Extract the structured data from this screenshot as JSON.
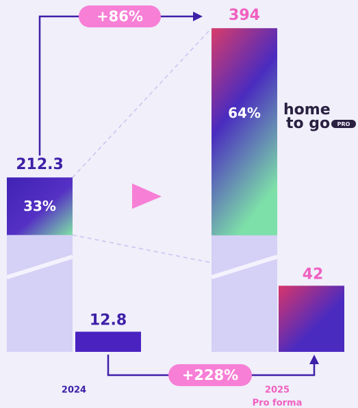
{
  "chart_data": {
    "type": "bar",
    "categories": [
      "2024",
      "2025"
    ],
    "category_notes": [
      null,
      "Pro forma"
    ],
    "series": [
      {
        "values": [
          212.3,
          394
        ],
        "share_values": [
          33,
          64
        ],
        "share_labels": [
          "33%",
          "64%"
        ],
        "color": "#d5d0f5"
      },
      {
        "values": [
          12.8,
          42
        ],
        "color": "#4a22c0"
      }
    ],
    "annotations": [
      {
        "label": "+86%"
      },
      {
        "label": "+228%"
      }
    ],
    "logo": {
      "line1": "home",
      "line2": "to go",
      "badge": "PRO"
    }
  }
}
